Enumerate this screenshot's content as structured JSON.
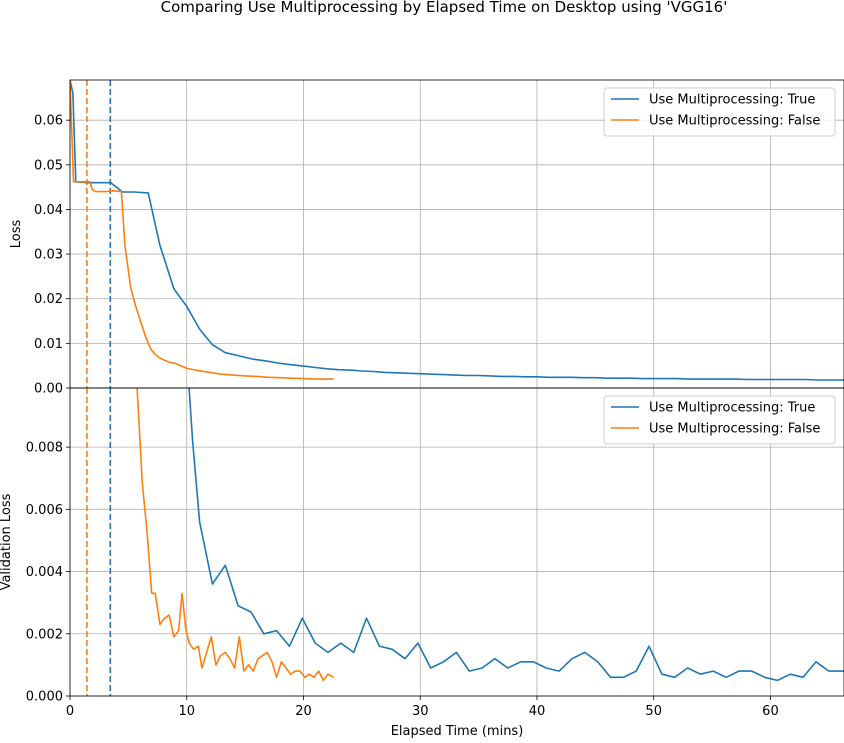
{
  "chart_data": {
    "type": "line",
    "title": "Comparing Use Multiprocessing by Elapsed Time on Desktop using 'VGG16'",
    "xlabel": "Elapsed Time (mins)",
    "xlim": [
      0,
      66.3
    ],
    "xticks": [
      "0",
      "10",
      "20",
      "30",
      "40",
      "50",
      "60"
    ],
    "colors": {
      "true": "#1f77b4",
      "false": "#ff7f0e"
    },
    "legend_placement": "top-right",
    "grid": true,
    "subplots": [
      {
        "ylabel": "Loss",
        "ylim": [
          0,
          0.069
        ],
        "yticks": [
          "0.00",
          "0.01",
          "0.02",
          "0.03",
          "0.04",
          "0.05",
          "0.06"
        ],
        "vlines": [
          {
            "series": "Use Multiprocessing: True",
            "x": 3.45
          },
          {
            "series": "Use Multiprocessing: False",
            "x": 1.45
          }
        ],
        "series": [
          {
            "name": "Use Multiprocessing: True",
            "x": [
              0,
              0.25,
              0.5,
              1.5,
              3.5,
              4.5,
              5.5,
              6.7,
              7.7,
              8.9,
              10,
              11.1,
              12.2,
              13.3,
              14.5,
              15.6,
              16.7,
              17.8,
              19,
              20,
              21,
              22,
              23,
              24,
              25,
              26,
              27,
              28,
              29,
              30,
              31,
              32,
              33,
              34,
              35,
              36,
              37,
              38,
              39,
              40,
              41,
              42,
              43,
              44,
              45,
              46,
              47,
              48,
              49,
              50,
              51,
              52,
              53,
              54,
              55,
              56,
              57,
              58,
              59,
              60,
              61,
              62,
              63,
              64,
              65,
              66.3
            ],
            "values": [
              0.069,
              0.066,
              0.0462,
              0.046,
              0.046,
              0.0439,
              0.0439,
              0.0437,
              0.032,
              0.0222,
              0.0183,
              0.0132,
              0.0097,
              0.0079,
              0.0072,
              0.0065,
              0.0061,
              0.0056,
              0.0052,
              0.0049,
              0.0046,
              0.0043,
              0.0041,
              0.004,
              0.0038,
              0.0037,
              0.0035,
              0.0034,
              0.0033,
              0.0032,
              0.0031,
              0.003,
              0.0029,
              0.0028,
              0.0028,
              0.0027,
              0.0026,
              0.0026,
              0.0025,
              0.0025,
              0.0024,
              0.0024,
              0.0024,
              0.0023,
              0.0023,
              0.0022,
              0.0022,
              0.0022,
              0.0021,
              0.0021,
              0.0021,
              0.0021,
              0.002,
              0.002,
              0.002,
              0.002,
              0.002,
              0.0019,
              0.0019,
              0.0019,
              0.0019,
              0.0019,
              0.0019,
              0.0018,
              0.0018,
              0.0018
            ]
          },
          {
            "name": "Use Multiprocessing: False",
            "x": [
              0,
              0.3,
              1.7,
              1.9,
              2.2,
              3.2,
              3.5,
              4.4,
              4.7,
              5.2,
              5.6,
              6.1,
              6.5,
              6.9,
              7.3,
              7.7,
              8.1,
              8.5,
              9.0,
              9.5,
              10,
              11,
              12,
              13,
              14,
              15,
              16,
              17,
              18,
              19,
              20,
              21,
              22,
              22.6
            ],
            "values": [
              0.069,
              0.0462,
              0.0462,
              0.0445,
              0.044,
              0.044,
              0.0442,
              0.044,
              0.032,
              0.0225,
              0.0185,
              0.0145,
              0.0113,
              0.0088,
              0.0075,
              0.0067,
              0.0062,
              0.0058,
              0.0055,
              0.005,
              0.0044,
              0.0039,
              0.0035,
              0.0031,
              0.0029,
              0.0027,
              0.0026,
              0.0024,
              0.0023,
              0.0022,
              0.0021,
              0.002,
              0.002,
              0.002
            ]
          }
        ]
      },
      {
        "ylabel": "Validation Loss",
        "ylim": [
          0,
          0.0099
        ],
        "yticks": [
          "0.000",
          "0.002",
          "0.004",
          "0.006",
          "0.008"
        ],
        "vlines": [
          {
            "series": "Use Multiprocessing: True",
            "x": 3.45
          },
          {
            "series": "Use Multiprocessing: False",
            "x": 1.45
          }
        ],
        "series": [
          {
            "name": "Use Multiprocessing: True",
            "x": [
              10.2,
              10.5,
              11.1,
              12.2,
              13.3,
              14.4,
              15.5,
              16.6,
              17.7,
              18.8,
              19.9,
              21,
              22.1,
              23.2,
              24.3,
              25.4,
              26.5,
              27.6,
              28.7,
              29.8,
              30.9,
              32,
              33.1,
              34.2,
              35.3,
              36.4,
              37.5,
              38.6,
              39.7,
              40.8,
              41.9,
              43,
              44.1,
              45.2,
              46.3,
              47.4,
              48.5,
              49.6,
              50.7,
              51.8,
              52.9,
              54,
              55.1,
              56.2,
              57.3,
              58.4,
              59.5,
              60.6,
              61.7,
              62.8,
              63.9,
              65,
              66.3
            ],
            "values": [
              0.0099,
              0.0082,
              0.0056,
              0.0036,
              0.0042,
              0.0029,
              0.0027,
              0.002,
              0.0021,
              0.0016,
              0.0025,
              0.0017,
              0.0014,
              0.0017,
              0.0014,
              0.0025,
              0.0016,
              0.0015,
              0.0012,
              0.0017,
              0.0009,
              0.0011,
              0.0014,
              0.0008,
              0.0009,
              0.0012,
              0.0009,
              0.0011,
              0.0011,
              0.0009,
              0.0008,
              0.0012,
              0.0014,
              0.0011,
              0.0006,
              0.0006,
              0.0008,
              0.0016,
              0.0007,
              0.0006,
              0.0009,
              0.0007,
              0.0008,
              0.0006,
              0.0008,
              0.0008,
              0.0006,
              0.0005,
              0.0007,
              0.0006,
              0.0011,
              0.0008,
              0.0008
            ]
          },
          {
            "name": "Use Multiprocessing: False",
            "x": [
              5.75,
              6.2,
              6.6,
              7.0,
              7.3,
              7.7,
              8.1,
              8.5,
              8.9,
              9.3,
              9.6,
              9.9,
              10.2,
              10.6,
              11,
              11.3,
              11.7,
              12.1,
              12.5,
              12.9,
              13.3,
              13.7,
              14.1,
              14.5,
              14.9,
              15.3,
              15.7,
              16.1,
              16.5,
              16.9,
              17.3,
              17.7,
              18.1,
              18.5,
              18.9,
              19.3,
              19.7,
              20.1,
              20.5,
              20.9,
              21.3,
              21.7,
              22.1,
              22.6
            ],
            "values": [
              0.0099,
              0.0068,
              0.0053,
              0.0033,
              0.0033,
              0.0023,
              0.0025,
              0.0026,
              0.0019,
              0.0021,
              0.0033,
              0.0022,
              0.0017,
              0.0015,
              0.0016,
              0.0009,
              0.0014,
              0.0019,
              0.001,
              0.0013,
              0.0014,
              0.0012,
              0.0009,
              0.0019,
              0.0008,
              0.001,
              0.0008,
              0.0012,
              0.0013,
              0.0014,
              0.0011,
              0.0006,
              0.0011,
              0.0009,
              0.0007,
              0.0008,
              0.0008,
              0.0006,
              0.0007,
              0.0006,
              0.0008,
              0.0005,
              0.0007,
              0.0006
            ]
          }
        ]
      }
    ]
  }
}
